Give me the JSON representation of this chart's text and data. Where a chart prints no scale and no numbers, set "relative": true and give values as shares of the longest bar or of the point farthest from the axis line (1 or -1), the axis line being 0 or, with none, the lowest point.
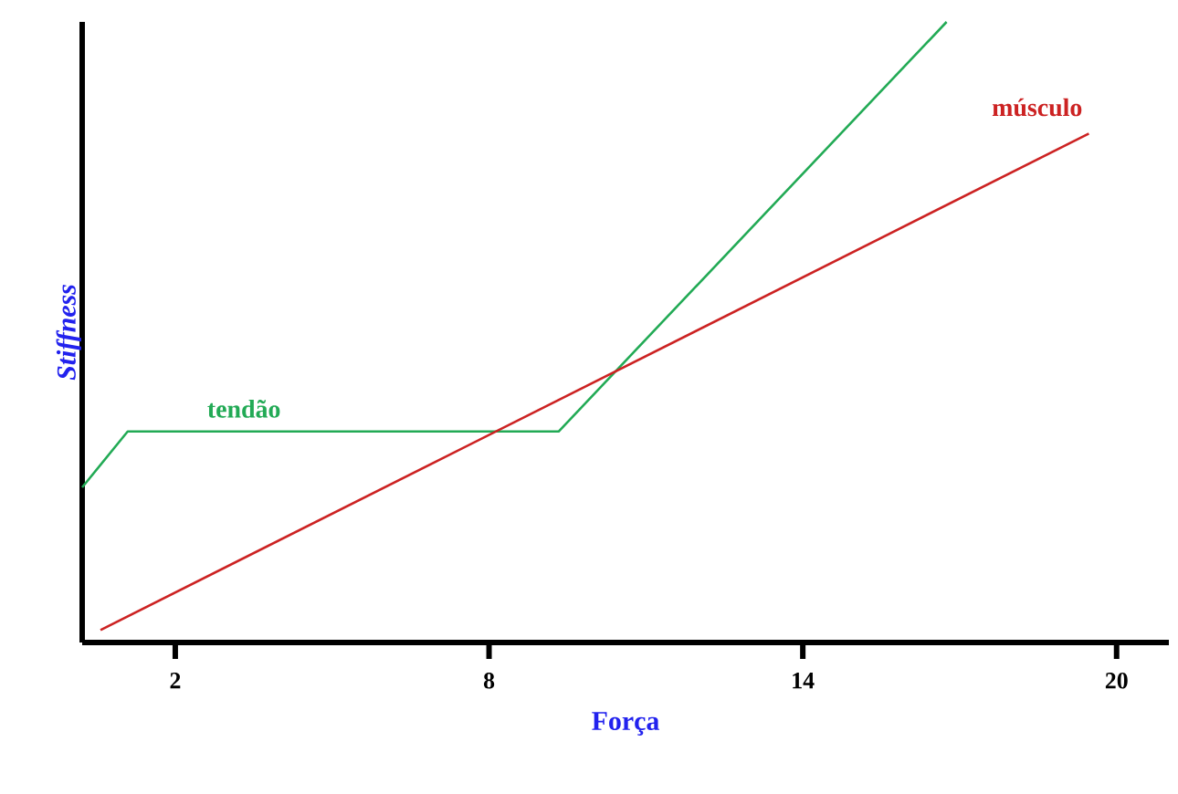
{
  "chart_data": {
    "type": "line",
    "relative": true,
    "xlabel": "Força",
    "ylabel": "*Stiffness*",
    "xlim": [
      0.22,
      21
    ],
    "xticks": [
      2,
      8,
      14,
      20
    ],
    "grid": false,
    "marker": "none",
    "line_style": "solid",
    "series": [
      {
        "name": "tendão",
        "color": "#22aa55",
        "x": [
          0.22,
          1.09,
          9.33,
          16.75
        ],
        "values": [
          0.25,
          0.34,
          0.34,
          1.0
        ]
      },
      {
        "name": "músculo",
        "color": "#cc2222",
        "x": [
          0.57,
          19.47
        ],
        "values": [
          0.02,
          0.82
        ]
      }
    ]
  }
}
